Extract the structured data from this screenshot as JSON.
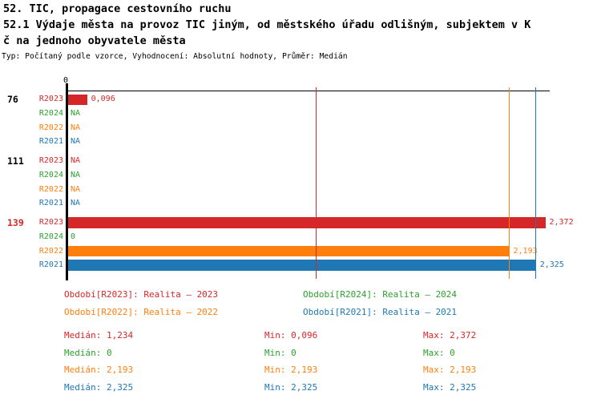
{
  "header": {
    "group_title": "52. TIC, propagace cestovního ruchu",
    "title_line1": "52.1 Výdaje města na provoz TIC jiným, od městského úřadu odlišným, subjektem v K",
    "title_line2": "č na jednoho obyvatele města",
    "meta": "Typ: Počítaný podle vzorce, Vyhodnocení: Absolutní hodnoty, Průměr: Medián"
  },
  "colors": {
    "series": {
      "R2023": "#d62728",
      "R2024": "#2ca02c",
      "R2022": "#ff7f0e",
      "R2021": "#1f77b4"
    },
    "axis": "#000000",
    "background": "#ffffff"
  },
  "chart_data": {
    "type": "bar",
    "orientation": "horizontal",
    "xlim": [
      0,
      2.372
    ],
    "x_tick_label": "0",
    "grid": false,
    "series": [
      "R2023",
      "R2024",
      "R2022",
      "R2021"
    ],
    "groups": [
      {
        "label": "76",
        "label_color": "#000000",
        "rows": [
          {
            "series": "R2023",
            "value": 0.096,
            "display": "0,096"
          },
          {
            "series": "R2024",
            "value": null,
            "display": "NA"
          },
          {
            "series": "R2022",
            "value": null,
            "display": "NA"
          },
          {
            "series": "R2021",
            "value": null,
            "display": "NA"
          }
        ]
      },
      {
        "label": "111",
        "label_color": "#000000",
        "rows": [
          {
            "series": "R2023",
            "value": null,
            "display": "NA"
          },
          {
            "series": "R2024",
            "value": null,
            "display": "NA"
          },
          {
            "series": "R2022",
            "value": null,
            "display": "NA"
          },
          {
            "series": "R2021",
            "value": null,
            "display": "NA"
          }
        ]
      },
      {
        "label": "139",
        "label_color": "#d62728",
        "rows": [
          {
            "series": "R2023",
            "value": 2.372,
            "display": "2,372"
          },
          {
            "series": "R2024",
            "value": 0,
            "display": "0"
          },
          {
            "series": "R2022",
            "value": 2.193,
            "display": "2,193"
          },
          {
            "series": "R2021",
            "value": 2.325,
            "display": "2,325"
          }
        ]
      }
    ],
    "median_lines": [
      {
        "series": "R2023",
        "value": 1.234
      },
      {
        "series": "R2024",
        "value": 0
      },
      {
        "series": "R2022",
        "value": 2.193
      },
      {
        "series": "R2021",
        "value": 2.325
      }
    ]
  },
  "legend": {
    "items": [
      {
        "series": "R2023",
        "label": "Období[R2023]: Realita – 2023"
      },
      {
        "series": "R2024",
        "label": "Období[R2024]: Realita – 2024"
      },
      {
        "series": "R2022",
        "label": "Období[R2022]: Realita – 2022"
      },
      {
        "series": "R2021",
        "label": "Období[R2021]: Realita – 2021"
      }
    ]
  },
  "stats": {
    "rows": [
      {
        "series": "R2023",
        "median": "Medián: 1,234",
        "min": "Min: 0,096",
        "max": "Max: 2,372"
      },
      {
        "series": "R2024",
        "median": "Medián: 0",
        "min": "Min: 0",
        "max": "Max: 0"
      },
      {
        "series": "R2022",
        "median": "Medián: 2,193",
        "min": "Min: 2,193",
        "max": "Max: 2,193"
      },
      {
        "series": "R2021",
        "median": "Medián: 2,325",
        "min": "Min: 2,325",
        "max": "Max: 2,325"
      }
    ]
  }
}
